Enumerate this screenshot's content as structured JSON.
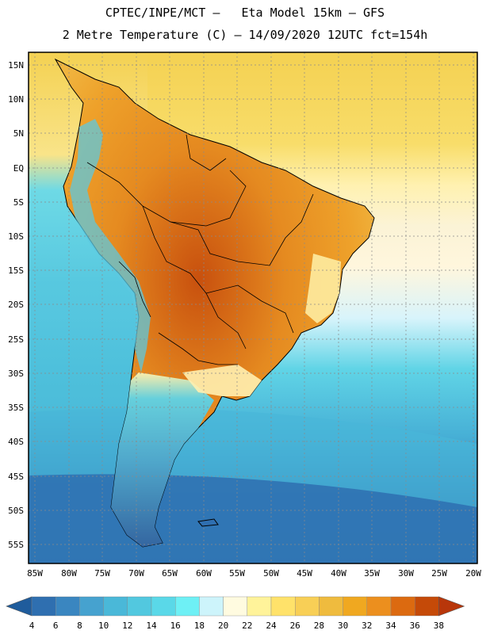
{
  "header": {
    "line1": "CPTEC/INPE/MCT –   Eta Model 15km – GFS",
    "line2": "2 Metre Temperature (C) – 14/09/2020 12UTC fct=154h"
  },
  "map": {
    "region": "South America",
    "lat_labels": [
      "15N",
      "10N",
      "5N",
      "EQ",
      "5S",
      "10S",
      "15S",
      "20S",
      "25S",
      "30S",
      "35S",
      "40S",
      "45S",
      "50S",
      "55S"
    ],
    "lon_labels": [
      "85W",
      "80W",
      "75W",
      "70W",
      "65W",
      "60W",
      "55W",
      "50W",
      "45W",
      "40W",
      "35W",
      "30W",
      "25W",
      "20W"
    ]
  },
  "colorbar": {
    "labels": [
      "4",
      "6",
      "8",
      "10",
      "12",
      "14",
      "16",
      "18",
      "20",
      "22",
      "24",
      "26",
      "28",
      "30",
      "32",
      "34",
      "36",
      "38"
    ],
    "colors": [
      "#2f6fb0",
      "#3a86c0",
      "#46a2cf",
      "#4ab8d8",
      "#52c8df",
      "#5ad8e8",
      "#6ef0f5",
      "#cdf4fb",
      "#fffbe0",
      "#fff39a",
      "#ffe26a",
      "#f8cf56",
      "#efbb3e",
      "#f0a820",
      "#ec8f1e",
      "#dc6a10",
      "#c54a08"
    ],
    "under_color": "#1f5c9c",
    "over_color": "#b8360a"
  }
}
